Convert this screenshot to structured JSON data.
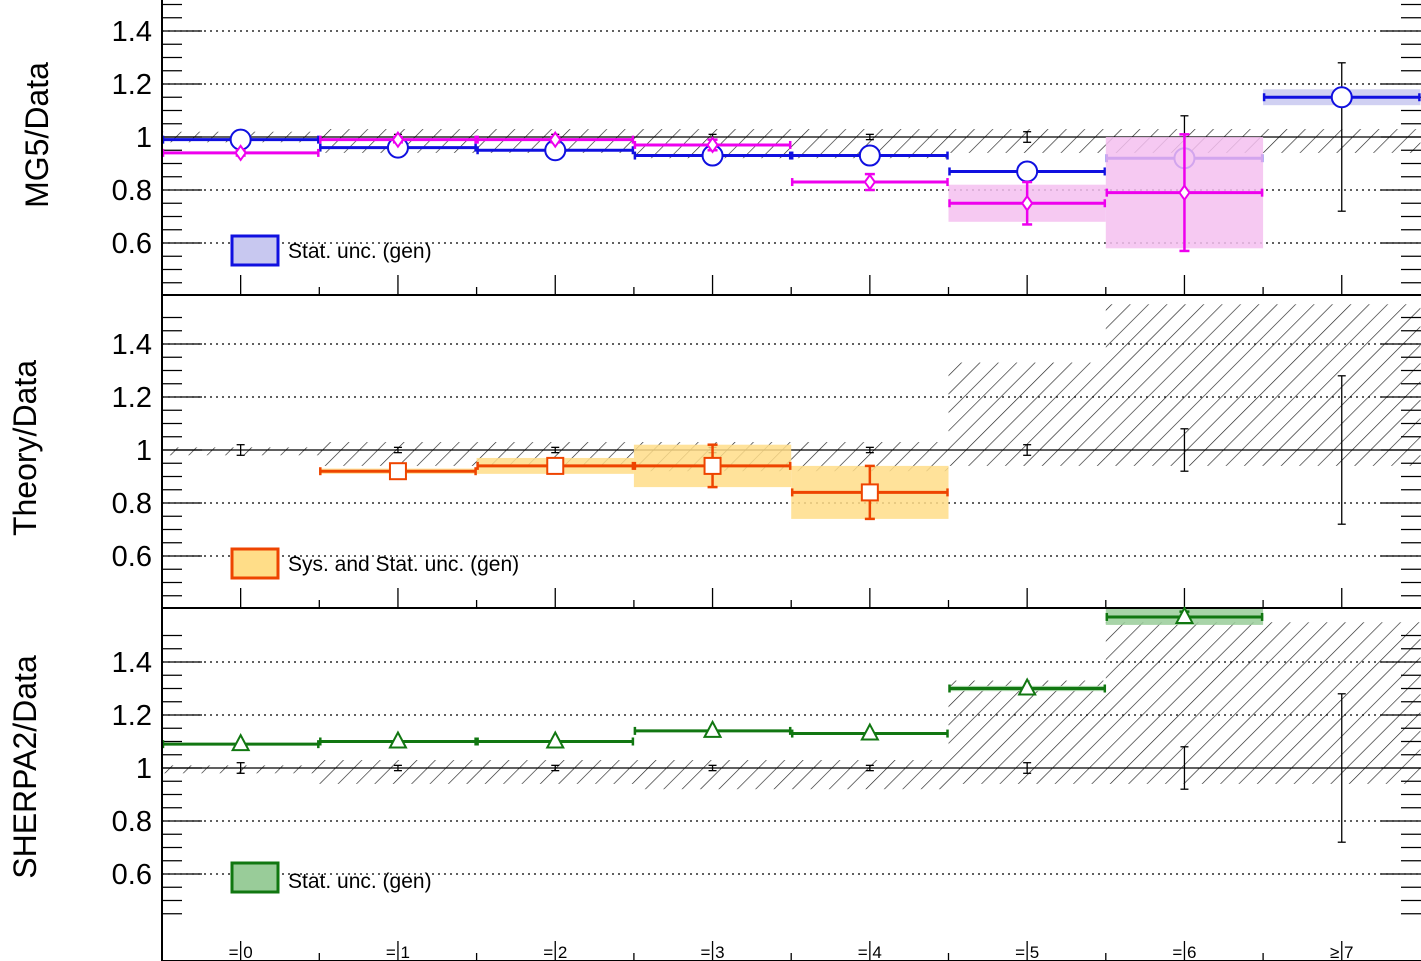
{
  "chart_data": {
    "type": "line",
    "categories": [
      "= 0",
      "= 1",
      "= 2",
      "= 3",
      "= 4",
      "= 5",
      "= 6",
      "≥ 7"
    ],
    "data_rel_error": [
      0.02,
      0.01,
      0.01,
      0.01,
      0.01,
      0.02,
      0.08,
      0.28
    ],
    "ylim": [
      0.45,
      1.55
    ],
    "yticks": [
      0.6,
      0.8,
      1,
      1.2,
      1.4
    ],
    "ytick_labels": [
      "0.6",
      "0.8",
      "1",
      "1.2",
      "1.4"
    ],
    "panels": [
      {
        "ylabel": "MG5/Data",
        "legend": "Stat. unc. (gen)",
        "legend_fill": "#c8c8f0",
        "legend_stroke": "#1010e0",
        "theory_band_lo": [
          0.98,
          0.94,
          0.94,
          0.92,
          0.92,
          0.94,
          0.94,
          0.94
        ],
        "theory_band_hi": [
          1.02,
          1.03,
          1.03,
          1.03,
          1.03,
          1.03,
          1.03,
          1.03
        ],
        "series": [
          {
            "name": "",
            "color": "#1010e0",
            "marker": "circle",
            "values": [
              0.99,
              0.96,
              0.95,
              0.93,
              0.93,
              0.87,
              0.92,
              1.15
            ],
            "err": [
              0.005,
              0.005,
              0.005,
              0.005,
              0.005,
              0.01,
              0.01,
              0.02
            ],
            "band": [
              0,
              0,
              0,
              0,
              0,
              0,
              0,
              0.03
            ],
            "band_color": "#c8c8f0"
          },
          {
            "name": "",
            "color": "#ee00ee",
            "marker": "diamond",
            "values": [
              0.94,
              0.99,
              0.99,
              0.97,
              0.83,
              0.75,
              0.79,
              null
            ],
            "err": [
              0.01,
              0.01,
              0.01,
              0.02,
              0.03,
              0.08,
              0.22,
              0
            ],
            "band": [
              0,
              0,
              0,
              0,
              0,
              0.07,
              0.21,
              0
            ],
            "band_color": "#f4c0f0"
          }
        ]
      },
      {
        "ylabel": "Theory/Data",
        "legend": "Sys. and Stat. unc. (gen)",
        "legend_fill": "#ffdd88",
        "legend_stroke": "#ee4400",
        "theory_band_lo": [
          0.98,
          0.94,
          0.94,
          0.92,
          0.92,
          0.94,
          0.94,
          0.94
        ],
        "theory_band_hi": [
          1.01,
          1.03,
          1.03,
          1.03,
          1.03,
          1.33,
          1.55,
          1.55
        ],
        "series": [
          {
            "name": "",
            "color": "#ee4400",
            "marker": "square",
            "values": [
              null,
              0.92,
              0.94,
              0.94,
              0.84,
              null,
              null,
              null
            ],
            "err": [
              0,
              0.01,
              0.01,
              0.08,
              0.1,
              0,
              0,
              0
            ],
            "band": [
              0,
              0.01,
              0.03,
              0.08,
              0.1,
              0,
              0,
              0
            ],
            "band_color": "#ffdd88"
          }
        ]
      },
      {
        "ylabel": "SHERPA2/Data",
        "legend": "Stat. unc. (gen)",
        "legend_fill": "#99cc99",
        "legend_stroke": "#117711",
        "theory_band_lo": [
          0.98,
          0.94,
          0.94,
          0.92,
          0.92,
          0.94,
          0.94,
          0.94
        ],
        "theory_band_hi": [
          1.01,
          1.03,
          1.03,
          1.03,
          1.03,
          1.33,
          1.55,
          1.55
        ],
        "series": [
          {
            "name": "",
            "color": "#117711",
            "marker": "triangle",
            "values": [
              1.09,
              1.1,
              1.1,
              1.14,
              1.13,
              1.3,
              1.57,
              null
            ],
            "err": [
              0,
              0,
              0,
              0,
              0,
              0,
              0.02,
              0
            ],
            "band": [
              0,
              0,
              0,
              0,
              0,
              0.01,
              0.03,
              0
            ],
            "band_color": "#99cc99"
          }
        ]
      }
    ]
  }
}
